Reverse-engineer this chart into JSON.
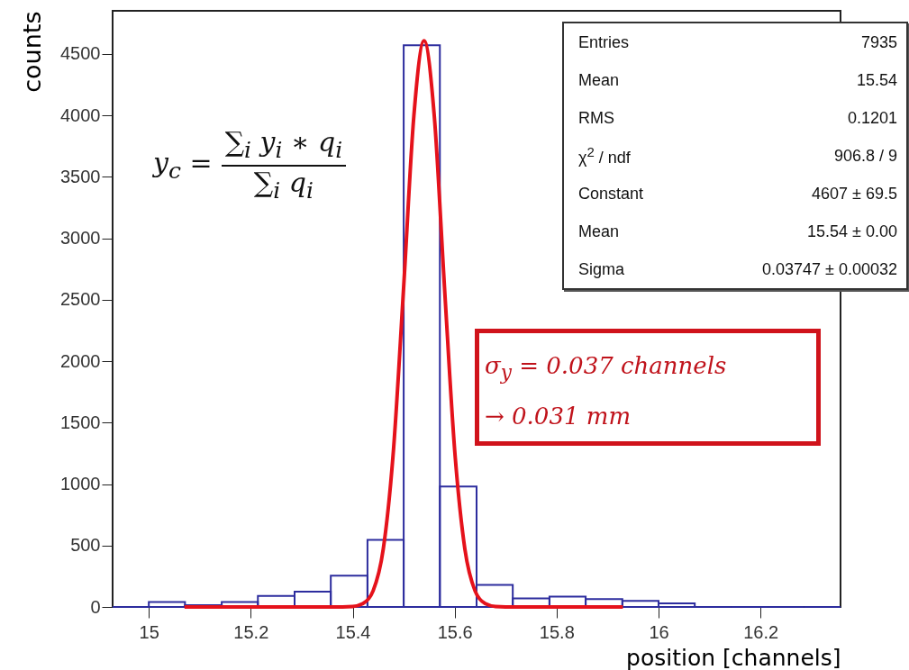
{
  "chart_data": {
    "type": "histogram",
    "xlabel": "position [channels]",
    "ylabel": "counts",
    "bins": [
      14.929,
      15.0,
      15.071,
      15.143,
      15.214,
      15.286,
      15.357,
      15.429,
      15.5,
      15.571,
      15.643,
      15.714,
      15.786,
      15.857,
      15.929,
      16.0,
      16.071,
      16.143,
      16.214,
      16.286,
      16.357
    ],
    "values": [
      0,
      40,
      15,
      40,
      90,
      125,
      255,
      545,
      4570,
      980,
      180,
      70,
      85,
      65,
      50,
      30,
      0,
      0,
      0,
      0
    ],
    "color": "#2d2d9e",
    "series": [
      {
        "type": "line",
        "color": "#e5121b",
        "x": [
          15.07,
          15.36,
          15.4,
          15.42,
          15.44,
          15.46,
          15.48,
          15.5,
          15.52,
          15.54,
          15.56,
          15.58,
          15.6,
          15.62,
          15.64,
          15.66,
          15.68,
          15.72,
          15.93
        ],
        "values": [
          0,
          0,
          4,
          27,
          131,
          472,
          1278,
          2606,
          3995,
          4607,
          3995,
          2606,
          1278,
          472,
          131,
          27,
          4,
          0,
          0
        ]
      }
    ],
    "xlim": [
      14.929,
      16.357
    ],
    "ylim": [
      0,
      4850
    ],
    "xticks": [
      15,
      15.2,
      15.4,
      15.6,
      15.8,
      16,
      16.2
    ],
    "yticks": [
      0,
      500,
      1000,
      1500,
      2000,
      2500,
      3000,
      3500,
      4000,
      4500
    ],
    "grid": false,
    "annotations": [
      "y$_{c}$ =",
      "∑$_{i}$ y$_{i}$ ∗ q$_{i}$",
      "∑$_{i}$ q$_{i}$",
      "σ$_{y}$ = 0.037 channels",
      "→ 0.031 mm",
      "Entries",
      "7935",
      "Mean",
      "15.54",
      "RMS",
      "0.1201",
      "χ$^{2}$ / ndf",
      "906.8 / 9",
      "Constant",
      "4607 ± 69.5",
      "Mean",
      "15.54 ± 0.00",
      "Sigma",
      "0.03747 ± 0.00032"
    ]
  }
}
